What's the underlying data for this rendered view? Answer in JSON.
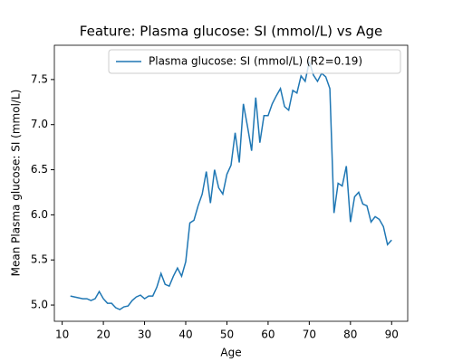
{
  "chart_data": {
    "type": "line",
    "title": "Feature: Plasma glucose: SI (mmol/L) vs Age",
    "x_label": "Age",
    "y_label": "Mean Plasma glucose: SI (mmol/L)",
    "x": [
      12,
      13,
      14,
      15,
      16,
      17,
      18,
      19,
      20,
      21,
      22,
      23,
      24,
      25,
      26,
      27,
      28,
      29,
      30,
      31,
      32,
      33,
      34,
      35,
      36,
      37,
      38,
      39,
      40,
      41,
      42,
      43,
      44,
      45,
      46,
      47,
      48,
      49,
      50,
      51,
      52,
      53,
      54,
      55,
      56,
      57,
      58,
      59,
      60,
      61,
      62,
      63,
      64,
      65,
      66,
      67,
      68,
      69,
      70,
      71,
      72,
      73,
      74,
      75,
      76,
      77,
      78,
      79,
      80,
      81,
      82,
      83,
      84,
      85,
      86,
      87,
      88,
      89,
      90
    ],
    "series": [
      {
        "name": "Plasma glucose: SI (mmol/L) (R2=0.19)",
        "color": "#1f77b4",
        "values": [
          5.1,
          5.09,
          5.08,
          5.07,
          5.07,
          5.05,
          5.07,
          5.15,
          5.07,
          5.02,
          5.02,
          4.97,
          4.95,
          4.98,
          4.99,
          5.05,
          5.09,
          5.11,
          5.07,
          5.1,
          5.1,
          5.2,
          5.35,
          5.23,
          5.21,
          5.32,
          5.41,
          5.32,
          5.48,
          5.91,
          5.94,
          6.1,
          6.23,
          6.48,
          6.13,
          6.5,
          6.3,
          6.23,
          6.45,
          6.55,
          6.91,
          6.58,
          7.23,
          6.98,
          6.71,
          7.3,
          6.8,
          7.1,
          7.1,
          7.23,
          7.32,
          7.4,
          7.2,
          7.16,
          7.38,
          7.35,
          7.54,
          7.48,
          7.7,
          7.55,
          7.48,
          7.57,
          7.53,
          7.4,
          6.02,
          6.35,
          6.32,
          6.54,
          5.92,
          6.2,
          6.25,
          6.12,
          6.1,
          5.92,
          5.98,
          5.95,
          5.87,
          5.67,
          5.72
        ]
      }
    ],
    "xlim": [
      8.1,
      93.9
    ],
    "ylim": [
      4.82,
      7.88
    ],
    "xticks": [
      10,
      20,
      30,
      40,
      50,
      60,
      70,
      80,
      90
    ],
    "yticks": [
      {
        "value": 5.0,
        "label": "5.0"
      },
      {
        "value": 5.5,
        "label": "5.5"
      },
      {
        "value": 6.0,
        "label": "6.0"
      },
      {
        "value": 6.5,
        "label": "6.5"
      },
      {
        "value": 7.0,
        "label": "7.0"
      },
      {
        "value": 7.5,
        "label": "7.5"
      }
    ],
    "legend": "upper right",
    "grid": false
  }
}
